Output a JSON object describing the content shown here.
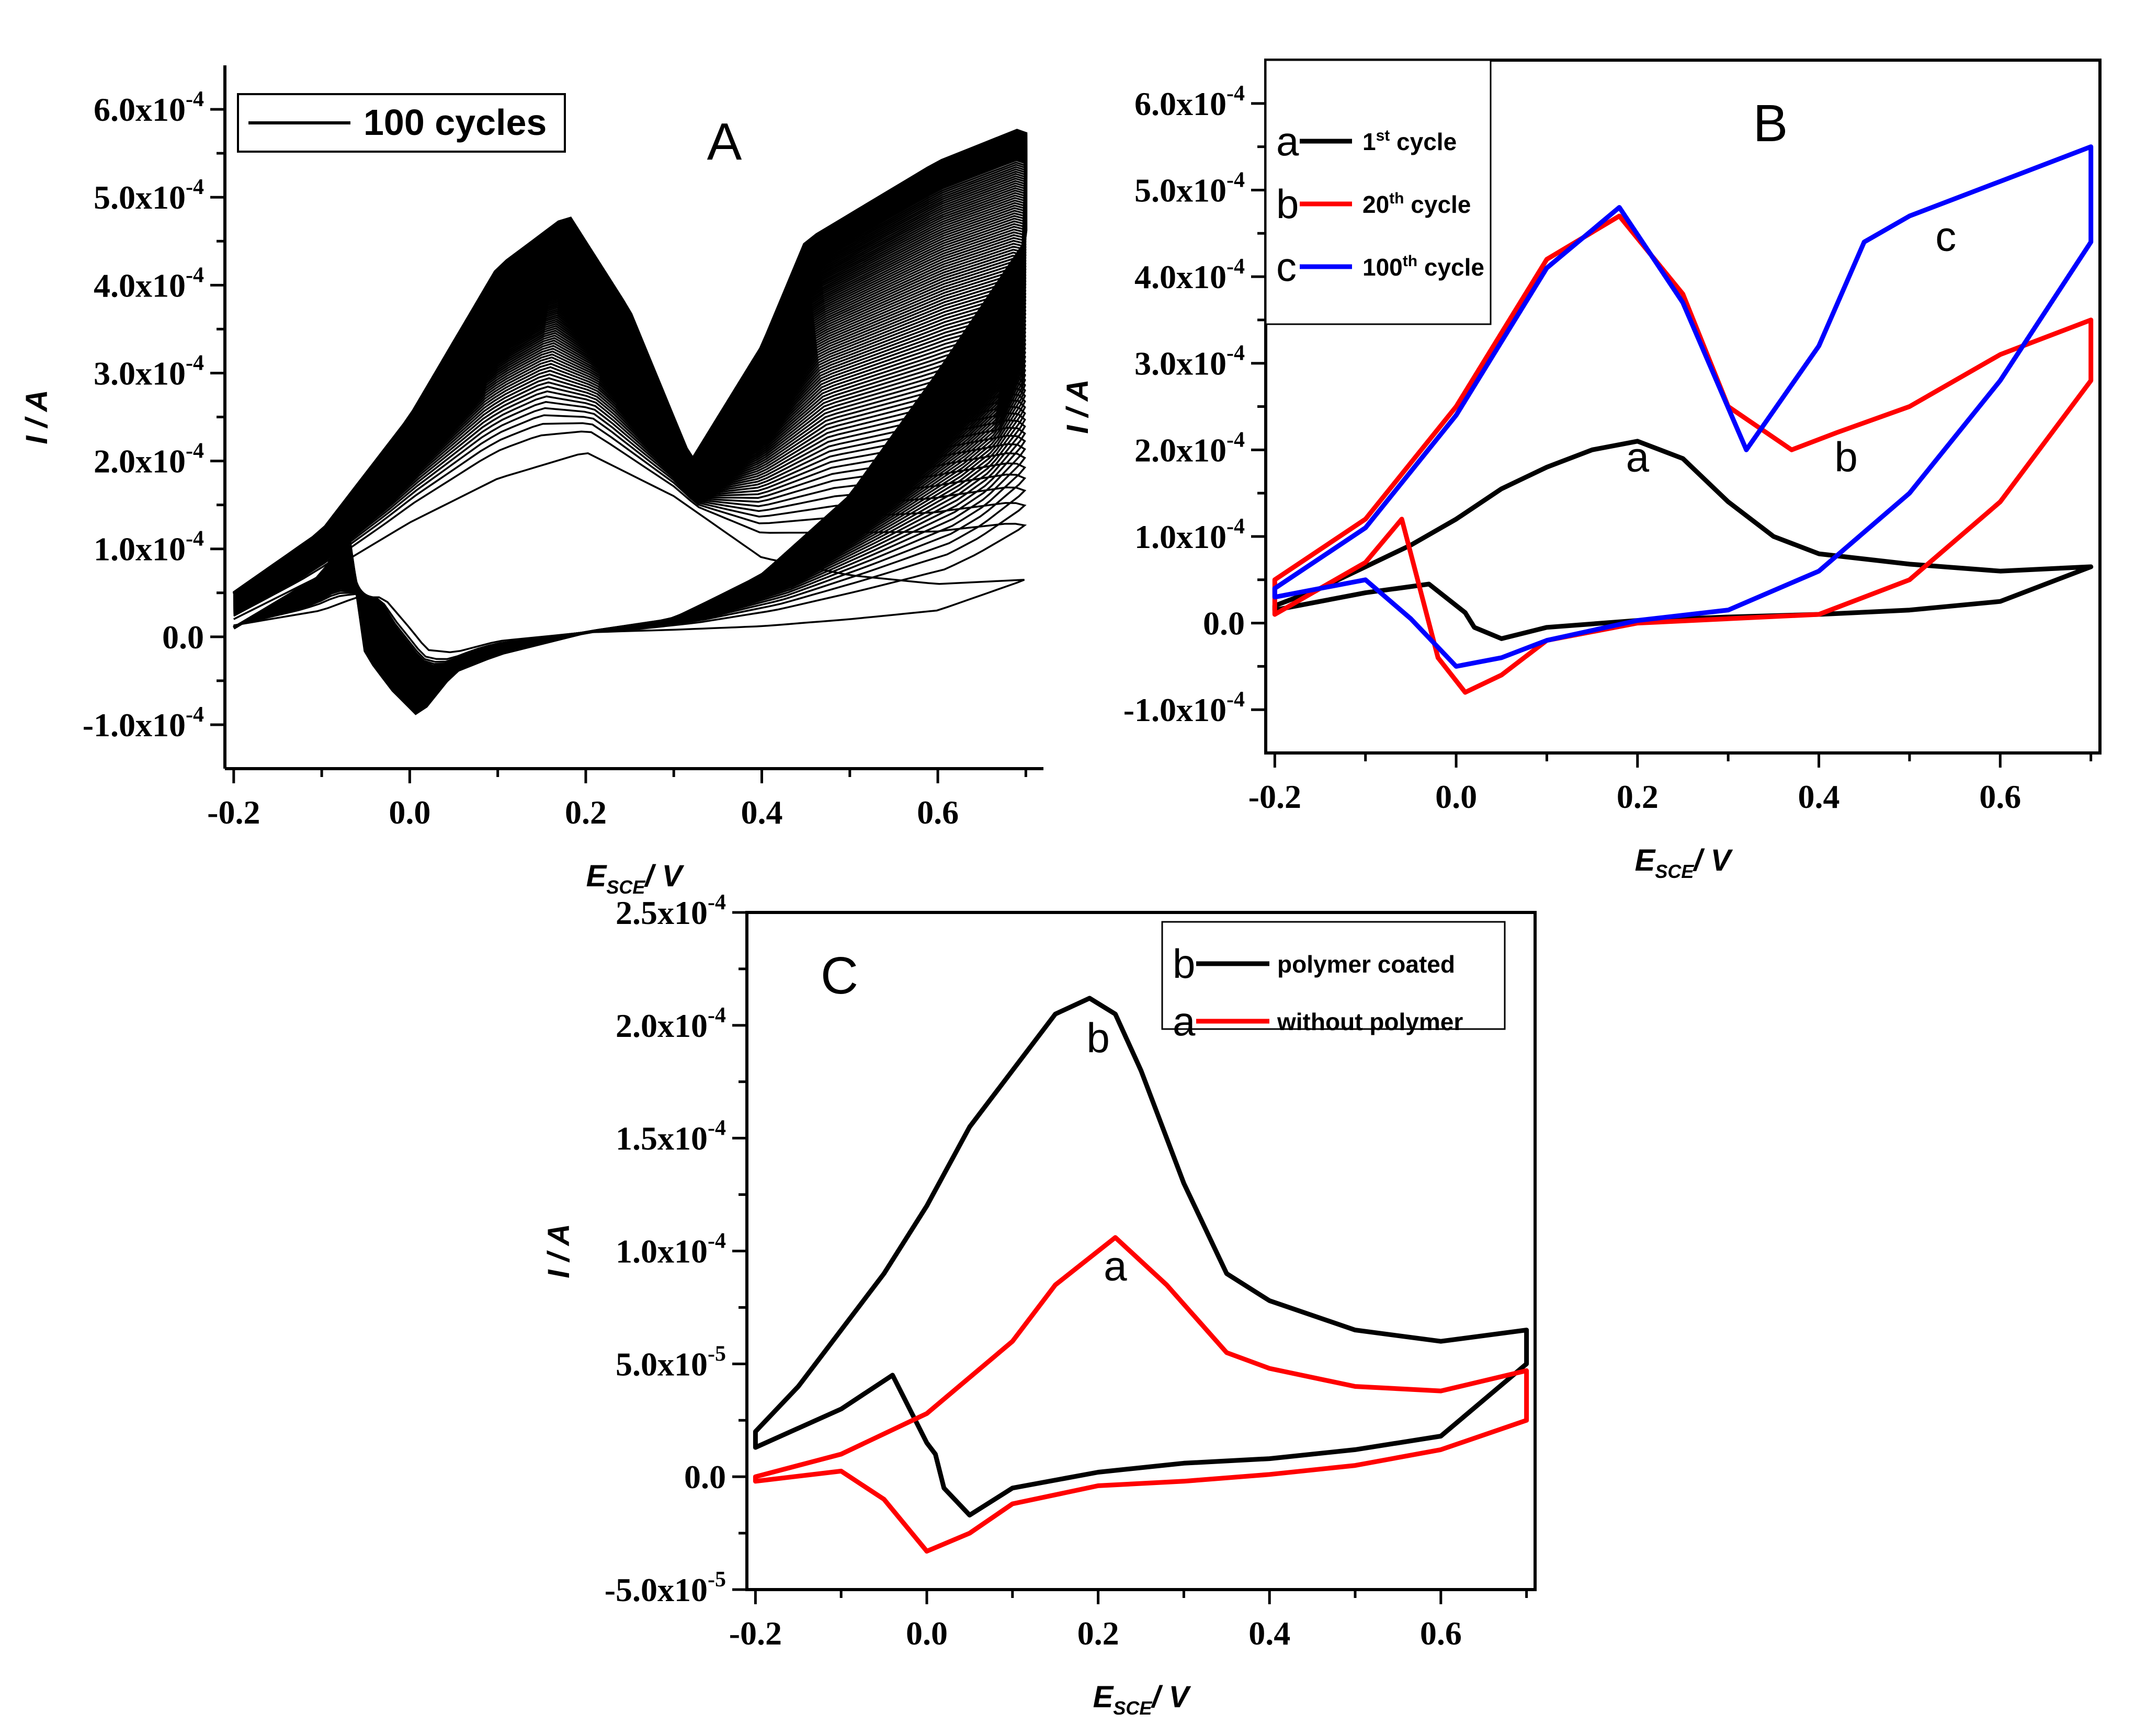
{
  "chart_data": [
    {
      "id": "A",
      "type": "line",
      "panel_label": "A",
      "xlabel": "E_SCE / V",
      "xlabel_main": "E",
      "xlabel_sub": "SCE",
      "xlabel_unit": "/ V",
      "ylabel": "I / A",
      "xlim": [
        -0.21,
        0.72
      ],
      "ylim": [
        -0.00015,
        0.00065
      ],
      "x_ticks": [
        "-0.2",
        "0.0",
        "0.2",
        "0.4",
        "0.6"
      ],
      "y_ticks": [
        {
          "mant": "-1.0x10",
          "exp": "-4",
          "value": -0.0001
        },
        {
          "mant": "0.0",
          "exp": "",
          "value": 0
        },
        {
          "mant": "1.0x10",
          "exp": "-4",
          "value": 0.0001
        },
        {
          "mant": "2.0x10",
          "exp": "-4",
          "value": 0.0002
        },
        {
          "mant": "3.0x10",
          "exp": "-4",
          "value": 0.0003
        },
        {
          "mant": "4.0x10",
          "exp": "-4",
          "value": 0.0004
        },
        {
          "mant": "5.0x10",
          "exp": "-4",
          "value": 0.0005
        },
        {
          "mant": "6.0x10",
          "exp": "-4",
          "value": 0.0006
        }
      ],
      "legend": {
        "entries": [
          "100 cycles"
        ],
        "position": "top-left"
      },
      "cycles": 100,
      "series_first": {
        "name": "1st cycle",
        "x": [
          -0.2,
          -0.1,
          0.0,
          0.1,
          0.2,
          0.3,
          0.4,
          0.5,
          0.6,
          0.7,
          0.7,
          0.6,
          0.5,
          0.4,
          0.3,
          0.2,
          0.1,
          0.05,
          0.02,
          0.0,
          -0.03,
          -0.06,
          -0.1,
          -0.2
        ],
        "y": [
          2e-05,
          7e-05,
          0.00013,
          0.00018,
          0.00021,
          0.00016,
          9e-05,
          7e-05,
          6e-05,
          6.5e-05,
          6.5e-05,
          3e-05,
          2e-05,
          1.2e-05,
          8e-06,
          5e-06,
          -5e-06,
          -1.8e-05,
          -1.5e-05,
          1e-05,
          4.5e-05,
          4.5e-05,
          3e-05,
          1.3e-05
        ]
      },
      "series_last": {
        "name": "100th cycle",
        "x": [
          -0.2,
          -0.1,
          0.0,
          0.1,
          0.18,
          0.25,
          0.32,
          0.4,
          0.45,
          0.5,
          0.6,
          0.7,
          0.7,
          0.6,
          0.5,
          0.4,
          0.3,
          0.2,
          0.1,
          0.05,
          0.01,
          -0.02,
          -0.05,
          -0.07,
          -0.1,
          -0.2
        ],
        "y": [
          5e-05,
          0.00012,
          0.00025,
          0.00042,
          0.00048,
          0.00037,
          0.0002,
          0.00033,
          0.00045,
          0.00048,
          0.00054,
          0.00058,
          0.00045,
          0.0003,
          0.00016,
          7e-05,
          2e-05,
          5e-06,
          -2e-05,
          -4e-05,
          -9e-05,
          -6e-05,
          -2e-05,
          0.00012,
          7e-05,
          1e-05
        ]
      }
    },
    {
      "id": "B",
      "type": "line",
      "panel_label": "B",
      "xlabel": "E_SCE / V",
      "xlabel_main": "E",
      "xlabel_sub": "SCE",
      "xlabel_unit": "/ V",
      "ylabel": "I / A",
      "xlim": [
        -0.21,
        0.71
      ],
      "ylim": [
        -0.00015,
        0.00065
      ],
      "x_ticks": [
        "-0.2",
        "0.0",
        "0.2",
        "0.4",
        "0.6"
      ],
      "y_ticks": [
        {
          "mant": "-1.0x10",
          "exp": "-4",
          "value": -0.0001
        },
        {
          "mant": "0.0",
          "exp": "",
          "value": 0
        },
        {
          "mant": "1.0x10",
          "exp": "-4",
          "value": 0.0001
        },
        {
          "mant": "2.0x10",
          "exp": "-4",
          "value": 0.0002
        },
        {
          "mant": "3.0x10",
          "exp": "-4",
          "value": 0.0003
        },
        {
          "mant": "4.0x10",
          "exp": "-4",
          "value": 0.0004
        },
        {
          "mant": "5.0x10",
          "exp": "-4",
          "value": 0.0005
        },
        {
          "mant": "6.0x10",
          "exp": "-4",
          "value": 0.0006
        }
      ],
      "legend": {
        "position": "top-left",
        "entries": [
          {
            "letter": "a",
            "text": "1",
            "sup": "st",
            "rest": " cycle",
            "color": "#000000"
          },
          {
            "letter": "b",
            "text": "20",
            "sup": "th",
            "rest": " cycle",
            "color": "#ff0000"
          },
          {
            "letter": "c",
            "text": "100",
            "sup": "th",
            "rest": " cycle",
            "color": "#0000ff"
          }
        ]
      },
      "series": [
        {
          "name": "1st cycle",
          "label": "a",
          "color": "#000000",
          "x": [
            -0.2,
            -0.15,
            -0.1,
            -0.05,
            0.0,
            0.05,
            0.1,
            0.15,
            0.2,
            0.25,
            0.3,
            0.35,
            0.4,
            0.5,
            0.6,
            0.7,
            0.7,
            0.6,
            0.5,
            0.4,
            0.3,
            0.2,
            0.1,
            0.05,
            0.02,
            0.01,
            -0.03,
            -0.1,
            -0.2
          ],
          "y": [
            2e-05,
            4e-05,
            6.5e-05,
            9e-05,
            0.00012,
            0.000155,
            0.00018,
            0.0002,
            0.00021,
            0.00019,
            0.00014,
            0.0001,
            8e-05,
            6.8e-05,
            6e-05,
            6.5e-05,
            6.5e-05,
            2.5e-05,
            1.5e-05,
            1e-05,
            7e-06,
            3e-06,
            -5e-06,
            -1.8e-05,
            -5e-06,
            1.2e-05,
            4.5e-05,
            3.5e-05,
            1.5e-05
          ],
          "annotation": {
            "text": "a",
            "x": 0.2,
            "y": 0.000175
          }
        },
        {
          "name": "20th cycle",
          "label": "b",
          "color": "#ff0000",
          "x": [
            -0.2,
            -0.1,
            0.0,
            0.1,
            0.18,
            0.25,
            0.3,
            0.37,
            0.42,
            0.5,
            0.6,
            0.7,
            0.7,
            0.6,
            0.5,
            0.4,
            0.3,
            0.2,
            0.1,
            0.05,
            0.01,
            -0.02,
            -0.06,
            -0.1,
            -0.2
          ],
          "y": [
            5e-05,
            0.00012,
            0.00025,
            0.00042,
            0.00047,
            0.00038,
            0.00025,
            0.0002,
            0.00022,
            0.00025,
            0.00031,
            0.00035,
            0.00028,
            0.00014,
            5e-05,
            1e-05,
            5e-06,
            0.0,
            -2e-05,
            -6e-05,
            -8e-05,
            -4e-05,
            0.00012,
            7e-05,
            1e-05
          ],
          "annotation": {
            "text": "b",
            "x": 0.43,
            "y": 0.000175
          }
        },
        {
          "name": "100th cycle",
          "label": "c",
          "color": "#0000ff",
          "x": [
            -0.2,
            -0.1,
            0.0,
            0.1,
            0.18,
            0.25,
            0.32,
            0.4,
            0.45,
            0.5,
            0.6,
            0.7,
            0.7,
            0.6,
            0.5,
            0.4,
            0.3,
            0.2,
            0.1,
            0.05,
            0.0,
            -0.05,
            -0.1,
            -0.2
          ],
          "y": [
            4e-05,
            0.00011,
            0.00024,
            0.00041,
            0.00048,
            0.00037,
            0.0002,
            0.00032,
            0.00044,
            0.00047,
            0.00051,
            0.00055,
            0.00044,
            0.00028,
            0.00015,
            6e-05,
            1.5e-05,
            3e-06,
            -2e-05,
            -4e-05,
            -5e-05,
            5e-06,
            5e-05,
            3e-05
          ],
          "annotation": {
            "text": "c",
            "x": 0.54,
            "y": 0.00043
          }
        }
      ]
    },
    {
      "id": "C",
      "type": "line",
      "panel_label": "C",
      "xlabel": "E_SCE / V",
      "xlabel_main": "E",
      "xlabel_sub": "SCE",
      "xlabel_unit": "/ V",
      "ylabel": "I / A",
      "xlim": [
        -0.21,
        0.71
      ],
      "ylim": [
        -5e-05,
        0.00025
      ],
      "x_ticks": [
        "-0.2",
        "0.0",
        "0.2",
        "0.4",
        "0.6"
      ],
      "y_ticks": [
        {
          "mant": "-5.0x10",
          "exp": "-5",
          "value": -5e-05
        },
        {
          "mant": "0.0",
          "exp": "",
          "value": 0
        },
        {
          "mant": "5.0x10",
          "exp": "-5",
          "value": 5e-05
        },
        {
          "mant": "1.0x10",
          "exp": "-4",
          "value": 0.0001
        },
        {
          "mant": "1.5x10",
          "exp": "-4",
          "value": 0.00015
        },
        {
          "mant": "2.0x10",
          "exp": "-4",
          "value": 0.0002
        },
        {
          "mant": "2.5x10",
          "exp": "-4",
          "value": 0.00025
        }
      ],
      "legend": {
        "position": "top-right",
        "entries": [
          {
            "letter": "b",
            "text": "polymer coated",
            "color": "#000000"
          },
          {
            "letter": "a",
            "text": "without polymer",
            "color": "#ff0000"
          }
        ]
      },
      "series": [
        {
          "name": "polymer coated",
          "label": "b",
          "color": "#000000",
          "x": [
            -0.2,
            -0.15,
            -0.1,
            -0.05,
            0.0,
            0.05,
            0.1,
            0.15,
            0.19,
            0.22,
            0.25,
            0.3,
            0.35,
            0.4,
            0.5,
            0.6,
            0.7,
            0.7,
            0.6,
            0.5,
            0.4,
            0.3,
            0.2,
            0.1,
            0.05,
            0.02,
            0.01,
            0.0,
            -0.04,
            -0.1,
            -0.2
          ],
          "y": [
            2e-05,
            4e-05,
            6.5e-05,
            9e-05,
            0.00012,
            0.000155,
            0.00018,
            0.000205,
            0.000212,
            0.000205,
            0.00018,
            0.00013,
            9e-05,
            7.8e-05,
            6.5e-05,
            6e-05,
            6.5e-05,
            5e-05,
            1.8e-05,
            1.2e-05,
            8e-06,
            6e-06,
            2e-06,
            -5e-06,
            -1.7e-05,
            -5e-06,
            1e-05,
            1.5e-05,
            4.5e-05,
            3e-05,
            1.3e-05
          ],
          "annotation": {
            "text": "b",
            "x": 0.2,
            "y": 0.000188
          }
        },
        {
          "name": "without polymer",
          "label": "a",
          "color": "#ff0000",
          "x": [
            -0.2,
            -0.1,
            0.0,
            0.1,
            0.15,
            0.22,
            0.28,
            0.35,
            0.4,
            0.5,
            0.6,
            0.7,
            0.7,
            0.6,
            0.5,
            0.4,
            0.3,
            0.2,
            0.1,
            0.05,
            0.0,
            -0.05,
            -0.1,
            -0.2
          ],
          "y": [
            0.0,
            1e-05,
            2.8e-05,
            6e-05,
            8.5e-05,
            0.000106,
            8.5e-05,
            5.5e-05,
            4.8e-05,
            4e-05,
            3.8e-05,
            4.7e-05,
            2.5e-05,
            1.2e-05,
            5e-06,
            1e-06,
            -2e-06,
            -4e-06,
            -1.2e-05,
            -2.5e-05,
            -3.3e-05,
            -1e-05,
            2.5e-06,
            -2e-06
          ],
          "annotation": {
            "text": "a",
            "x": 0.22,
            "y": 8.7e-05
          }
        }
      ]
    }
  ]
}
